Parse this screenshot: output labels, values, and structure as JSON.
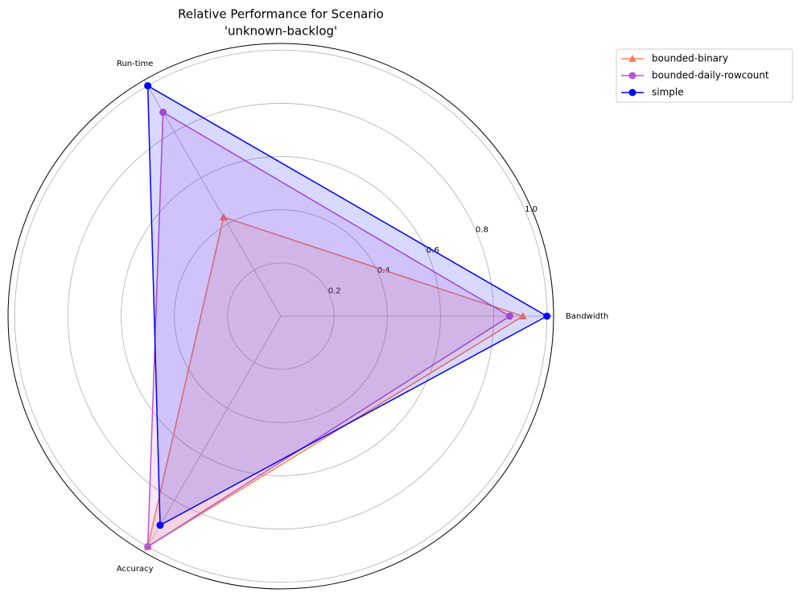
{
  "chart_data": {
    "type": "radar",
    "title": [
      "Relative Performance for Scenario",
      "'unknown-backlog'"
    ],
    "categories": [
      "Bandwidth",
      "Run-time",
      "Accuracy"
    ],
    "series": [
      {
        "name": "bounded-binary",
        "color": "#ff7f50",
        "marker": "triangle",
        "values": [
          0.91,
          0.43,
          1.0
        ]
      },
      {
        "name": "bounded-daily-rowcount",
        "color": "#ba55d3",
        "marker": "circle",
        "values": [
          0.86,
          0.885,
          1.0
        ]
      },
      {
        "name": "simple",
        "color": "#0000ff",
        "marker": "circle",
        "values": [
          1.0,
          1.0,
          0.907
        ]
      }
    ],
    "ylim": [
      0,
      1.025
    ],
    "yticks": [
      0.2,
      0.4,
      0.6,
      0.8,
      {
        "value": 1.0,
        "label": "1.0"
      }
    ],
    "grid": true,
    "legend": "upper right outside"
  }
}
